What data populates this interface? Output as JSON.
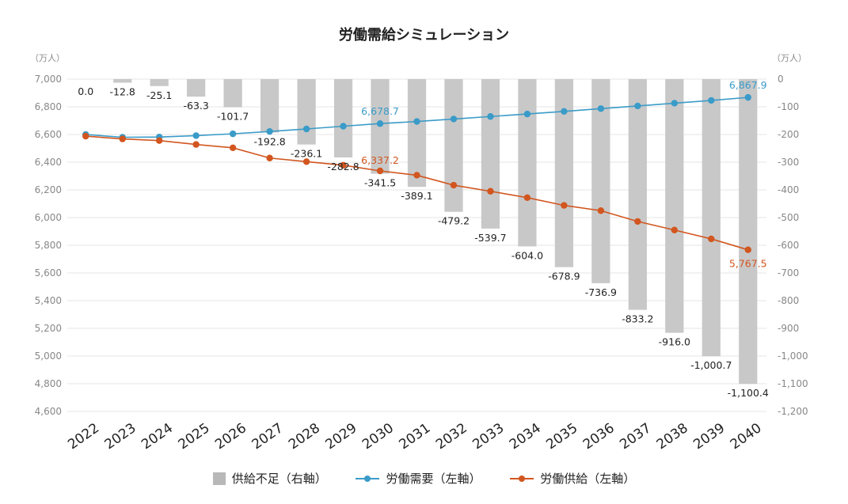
{
  "chart_data": {
    "type": "bar+line",
    "title": "労働需給シミュレーション",
    "left_axis_unit": "（万人）",
    "right_axis_unit": "（万人）",
    "left_ylim": [
      4600,
      7000
    ],
    "left_ticks": [
      "7,000",
      "6,800",
      "6,600",
      "6,400",
      "6,200",
      "6,000",
      "5,800",
      "5,600",
      "5,400",
      "5,200",
      "5,000",
      "4,800",
      "4,600"
    ],
    "right_ylim": [
      -1200,
      0
    ],
    "right_ticks": [
      "0",
      "-100",
      "-200",
      "-300",
      "-400",
      "-500",
      "-600",
      "-700",
      "-800",
      "-900",
      "-1,000",
      "-1,100",
      "-1,200"
    ],
    "grid": true,
    "categories": [
      "2022",
      "2023",
      "2024",
      "2025",
      "2026",
      "2027",
      "2028",
      "2029",
      "2030",
      "2031",
      "2032",
      "2033",
      "2034",
      "2035",
      "2036",
      "2037",
      "2038",
      "2039",
      "2040"
    ],
    "series": [
      {
        "name": "供給不足（右軸）",
        "type": "bar",
        "axis": "right",
        "color": "#c8c8c8",
        "values": [
          0.0,
          -12.8,
          -25.1,
          -63.3,
          -101.7,
          -192.8,
          -236.1,
          -282.8,
          -341.5,
          -389.1,
          -479.2,
          -539.7,
          -604.0,
          -678.9,
          -736.9,
          -833.2,
          -916.0,
          -1000.7,
          -1100.4
        ],
        "labels": [
          "0.0",
          "-12.8",
          "-25.1",
          "-63.3",
          "-101.7",
          "-192.8",
          "-236.1",
          "-282.8",
          "-341.5",
          "-389.1",
          "-479.2",
          "-539.7",
          "-604.0",
          "-678.9",
          "-736.9",
          "-833.2",
          "-916.0",
          "-1,000.7",
          "-1,100.4"
        ]
      },
      {
        "name": "労働需要（左軸）",
        "type": "line",
        "axis": "left",
        "color": "#3a9bc8",
        "values": [
          6600,
          6580,
          6582,
          6592,
          6605,
          6622,
          6640,
          6660,
          6678.7,
          6694,
          6712,
          6730,
          6748,
          6767,
          6787,
          6806,
          6826,
          6846,
          6867.9
        ],
        "labels": {
          "8": "6,678.7",
          "18": "6,867.9"
        }
      },
      {
        "name": "労働供給（左軸）",
        "type": "line",
        "axis": "left",
        "color": "#d2561f",
        "values": [
          6588,
          6568,
          6556,
          6528,
          6504,
          6430,
          6404,
          6378,
          6337.2,
          6306,
          6234,
          6190,
          6144,
          6088,
          6050,
          5972,
          5910,
          5846,
          5767.5
        ],
        "labels": {
          "8": "6,337.2",
          "18": "5,767.5"
        }
      }
    ]
  }
}
